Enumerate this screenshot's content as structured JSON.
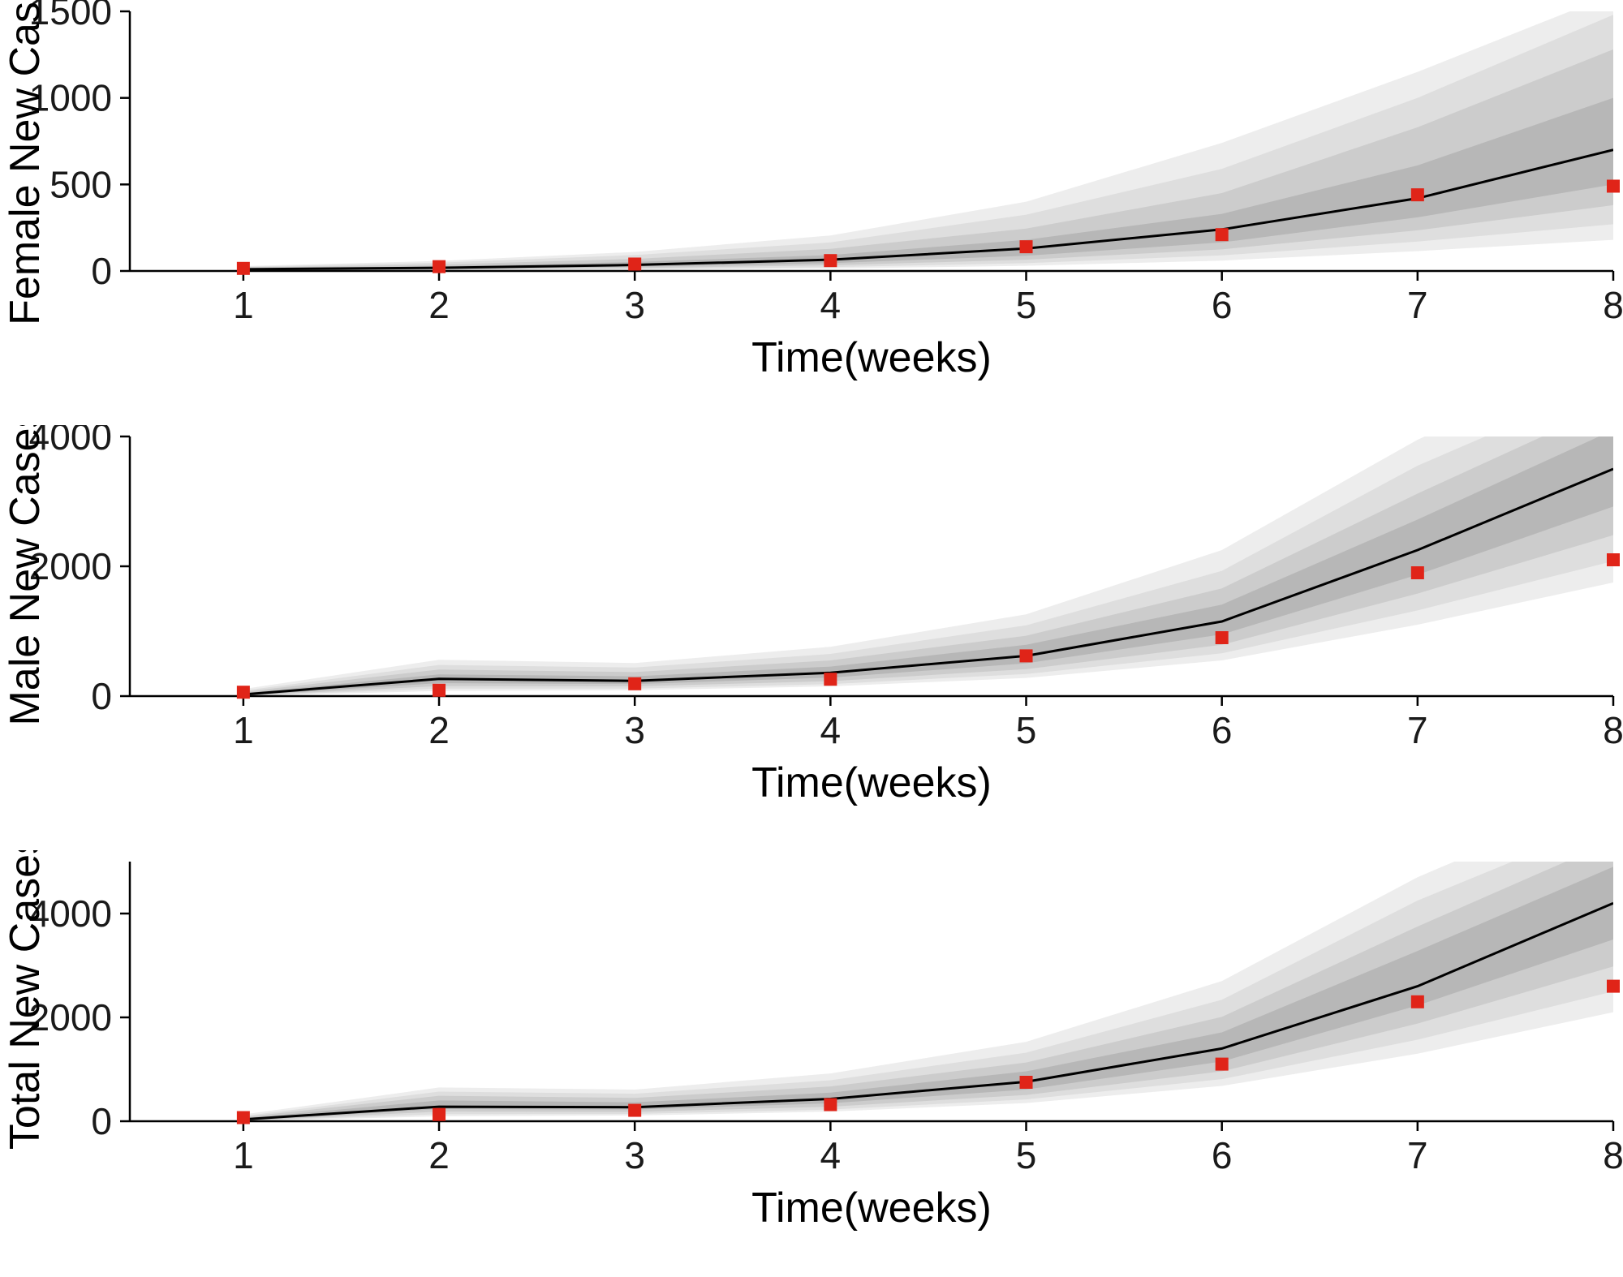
{
  "figure": {
    "background": "#ffffff",
    "num_subplots": 3
  },
  "chart_data": [
    {
      "type": "line",
      "title": "",
      "xlabel": "Time(weeks)",
      "ylabel": "Female New Cases",
      "legend": "none",
      "grid": false,
      "x": [
        1,
        2,
        3,
        4,
        5,
        6,
        7,
        8
      ],
      "xticks": [
        1,
        2,
        3,
        4,
        5,
        6,
        7,
        8
      ],
      "xlim": [
        0.42,
        8.0
      ],
      "ylim": [
        0,
        1500
      ],
      "yticks": [
        0,
        500,
        1000,
        1500
      ],
      "median": [
        10,
        18,
        35,
        65,
        130,
        240,
        420,
        700
      ],
      "observed": [
        15,
        25,
        40,
        60,
        140,
        210,
        440,
        490
      ],
      "bands": [
        {
          "level": "outermost",
          "lo": [
            0,
            2,
            6,
            14,
            30,
            60,
            115,
            180
          ],
          "hi": [
            28,
            58,
            110,
            205,
            400,
            740,
            1150,
            1600
          ]
        },
        {
          "level": "outer",
          "lo": [
            2,
            5,
            11,
            22,
            45,
            90,
            170,
            270
          ],
          "hi": [
            24,
            48,
            92,
            165,
            325,
            590,
            1000,
            1480
          ]
        },
        {
          "level": "inner",
          "lo": [
            4,
            8,
            17,
            33,
            65,
            125,
            235,
            380
          ],
          "hi": [
            20,
            37,
            70,
            128,
            245,
            450,
            830,
            1280
          ]
        },
        {
          "level": "innermost",
          "lo": [
            6,
            12,
            24,
            45,
            88,
            165,
            310,
            500
          ],
          "hi": [
            15,
            27,
            52,
            92,
            180,
            330,
            610,
            1000
          ]
        }
      ],
      "colors": {
        "median": "#000000",
        "marker": "#e02418",
        "bands": [
          "#ededed",
          "#dedede",
          "#cccccc",
          "#b7b7b7"
        ]
      }
    },
    {
      "type": "line",
      "title": "",
      "xlabel": "Time(weeks)",
      "ylabel": "Male New Cases",
      "legend": "none",
      "grid": false,
      "x": [
        1,
        2,
        3,
        4,
        5,
        6,
        7,
        8
      ],
      "xticks": [
        1,
        2,
        3,
        4,
        5,
        6,
        7,
        8
      ],
      "xlim": [
        0.42,
        8.0
      ],
      "ylim": [
        0,
        4000
      ],
      "yticks": [
        0,
        2000,
        4000
      ],
      "median": [
        25,
        265,
        235,
        360,
        620,
        1150,
        2250,
        3500
      ],
      "observed": [
        60,
        90,
        190,
        260,
        620,
        900,
        1900,
        2100
      ],
      "bands": [
        {
          "level": "outermost",
          "lo": [
            0,
            80,
            90,
            150,
            280,
            550,
            1100,
            1750
          ],
          "hi": [
            110,
            560,
            510,
            760,
            1260,
            2250,
            3950,
            5300
          ]
        },
        {
          "level": "outer",
          "lo": [
            2,
            115,
            115,
            185,
            340,
            660,
            1320,
            2080
          ],
          "hi": [
            85,
            480,
            440,
            650,
            1090,
            1930,
            3550,
            4850
          ]
        },
        {
          "level": "inner",
          "lo": [
            5,
            155,
            150,
            230,
            415,
            790,
            1580,
            2480
          ],
          "hi": [
            65,
            410,
            370,
            550,
            930,
            1660,
            3120,
            4500
          ]
        },
        {
          "level": "innermost",
          "lo": [
            10,
            200,
            185,
            285,
            505,
            950,
            1870,
            2920
          ],
          "hi": [
            45,
            335,
            305,
            455,
            790,
            1410,
            2720,
            4100
          ]
        }
      ],
      "colors": {
        "median": "#000000",
        "marker": "#e02418",
        "bands": [
          "#ededed",
          "#dedede",
          "#cccccc",
          "#b7b7b7"
        ]
      }
    },
    {
      "type": "line",
      "title": "",
      "xlabel": "Time(weeks)",
      "ylabel": "Total New Cases",
      "legend": "none",
      "grid": false,
      "x": [
        1,
        2,
        3,
        4,
        5,
        6,
        7,
        8
      ],
      "xticks": [
        1,
        2,
        3,
        4,
        5,
        6,
        7,
        8
      ],
      "xlim": [
        0.42,
        8.0
      ],
      "ylim": [
        0,
        5000
      ],
      "yticks": [
        0,
        2000,
        4000
      ],
      "median": [
        35,
        280,
        270,
        430,
        760,
        1400,
        2600,
        4200
      ],
      "observed": [
        70,
        130,
        210,
        320,
        750,
        1100,
        2300,
        2600
      ],
      "bands": [
        {
          "level": "outermost",
          "lo": [
            0,
            95,
            110,
            185,
            350,
            680,
            1300,
            2100
          ],
          "hi": [
            130,
            650,
            610,
            920,
            1530,
            2700,
            4700,
            6300
          ]
        },
        {
          "level": "outer",
          "lo": [
            3,
            135,
            140,
            225,
            420,
            810,
            1570,
            2500
          ],
          "hi": [
            100,
            570,
            530,
            790,
            1320,
            2340,
            4250,
            5800
          ]
        },
        {
          "level": "inner",
          "lo": [
            6,
            185,
            180,
            280,
            505,
            960,
            1880,
            2980
          ],
          "hi": [
            80,
            490,
            450,
            670,
            1130,
            2010,
            3750,
            5400
          ]
        },
        {
          "level": "innermost",
          "lo": [
            12,
            235,
            225,
            345,
            610,
            1150,
            2230,
            3500
          ],
          "hi": [
            55,
            400,
            365,
            550,
            960,
            1710,
            3280,
            4900
          ]
        }
      ],
      "colors": {
        "median": "#000000",
        "marker": "#e02418",
        "bands": [
          "#ededed",
          "#dedede",
          "#cccccc",
          "#b7b7b7"
        ]
      }
    }
  ]
}
